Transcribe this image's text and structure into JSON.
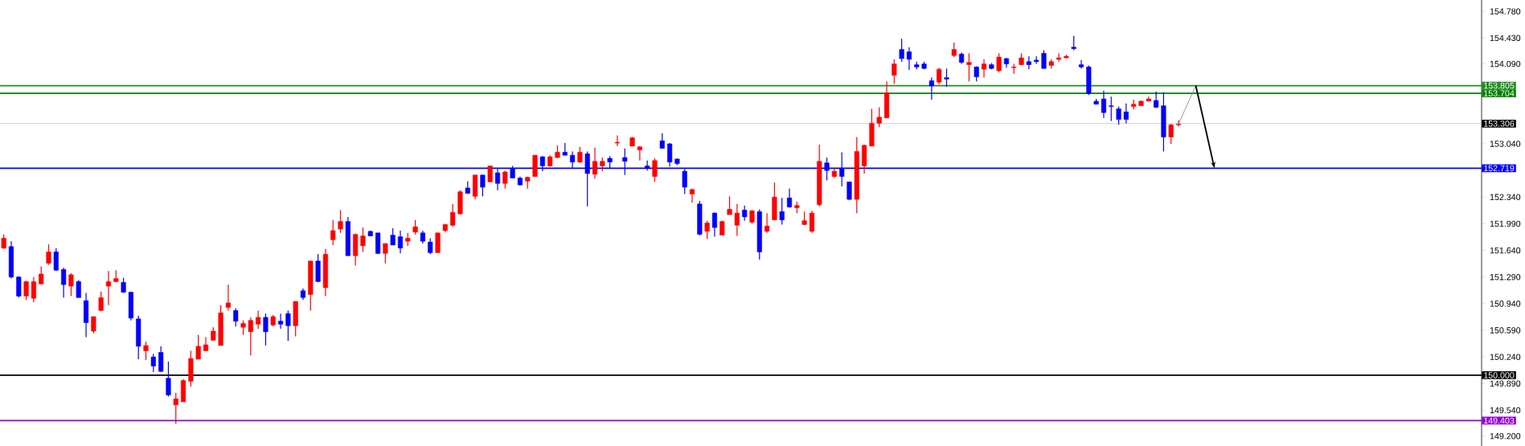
{
  "chart_data": {
    "type": "candlestick",
    "categories": [
      null,
      null,
      null,
      null,
      null,
      null,
      null,
      null,
      null,
      null,
      null,
      null,
      null,
      null,
      null,
      null,
      null,
      null,
      null,
      null,
      null,
      null,
      null,
      null,
      null,
      null,
      null,
      null,
      null,
      null,
      null,
      null,
      null,
      null,
      null,
      null,
      null,
      null,
      null,
      null,
      null,
      null,
      null,
      null,
      null,
      null,
      null,
      null,
      null,
      null,
      null,
      null,
      null,
      null,
      null,
      null,
      null,
      null,
      null,
      null,
      null,
      null,
      null,
      null,
      null,
      null,
      null,
      null,
      null,
      null,
      null,
      null,
      null,
      null,
      null,
      null,
      null,
      null,
      null,
      null,
      null,
      null,
      null,
      null,
      null,
      null,
      null,
      null,
      null,
      null,
      null,
      null,
      null,
      null,
      null,
      null,
      null,
      null,
      null,
      null,
      null,
      null,
      null,
      null,
      null,
      null,
      null,
      null,
      null,
      null,
      null,
      null,
      null,
      null,
      null,
      null,
      null,
      null,
      null,
      null,
      null,
      null,
      null,
      null,
      null,
      null,
      null,
      null,
      null,
      null,
      null,
      null,
      null,
      null,
      null,
      null,
      null,
      null,
      null,
      null,
      null,
      null,
      null,
      null,
      null,
      null,
      null,
      null,
      null,
      null,
      null,
      null,
      null,
      null,
      null,
      null,
      null,
      null,
      null,
      null,
      null,
      null,
      null,
      null,
      null,
      null,
      null,
      null,
      null,
      null,
      null,
      null,
      null,
      null,
      null,
      null,
      null,
      null,
      null,
      null,
      null,
      null,
      null,
      null,
      null,
      null,
      null,
      null,
      null,
      null,
      null,
      null,
      null,
      null,
      null,
      null,
      null,
      null
    ],
    "ohlc": [
      [
        151.67,
        151.85,
        151.66,
        151.8
      ],
      [
        151.69,
        151.76,
        151.27,
        151.29
      ],
      [
        151.29,
        151.3,
        151.02,
        151.04
      ],
      [
        151.04,
        151.24,
        150.99,
        151.23
      ],
      [
        151.01,
        151.29,
        150.96,
        151.23
      ],
      [
        151.2,
        151.43,
        151.19,
        151.33
      ],
      [
        151.47,
        151.72,
        151.45,
        151.62
      ],
      [
        151.62,
        151.67,
        151.37,
        151.38
      ],
      [
        151.39,
        151.41,
        151.02,
        151.19
      ],
      [
        151.17,
        151.34,
        151.04,
        151.32
      ],
      [
        151.23,
        151.25,
        151.02,
        151.02
      ],
      [
        150.98,
        151.08,
        150.5,
        150.69
      ],
      [
        150.58,
        150.77,
        150.55,
        150.77
      ],
      [
        150.85,
        151.1,
        150.84,
        151.02
      ],
      [
        151.17,
        151.37,
        150.92,
        151.23
      ],
      [
        151.23,
        151.38,
        151.22,
        151.27
      ],
      [
        151.22,
        151.28,
        151.08,
        151.09
      ],
      [
        151.09,
        151.1,
        150.72,
        150.75
      ],
      [
        150.74,
        150.78,
        150.21,
        150.38
      ],
      [
        150.32,
        150.44,
        150.2,
        150.39
      ],
      [
        150.24,
        150.28,
        150.04,
        150.12
      ],
      [
        150.3,
        150.38,
        150.04,
        150.05
      ],
      [
        149.96,
        150.18,
        149.72,
        149.74
      ],
      [
        149.61,
        149.77,
        149.36,
        149.69
      ],
      [
        149.65,
        149.95,
        149.65,
        149.93
      ],
      [
        149.92,
        150.32,
        149.85,
        150.22
      ],
      [
        150.21,
        150.53,
        150.21,
        150.38
      ],
      [
        150.32,
        150.5,
        150.32,
        150.4
      ],
      [
        150.46,
        150.63,
        150.45,
        150.58
      ],
      [
        150.39,
        150.92,
        150.39,
        150.82
      ],
      [
        150.89,
        151.19,
        150.85,
        150.95
      ],
      [
        150.85,
        150.88,
        150.64,
        150.71
      ],
      [
        150.63,
        150.72,
        150.53,
        150.68
      ],
      [
        150.57,
        150.76,
        150.26,
        150.72
      ],
      [
        150.67,
        150.85,
        150.61,
        150.76
      ],
      [
        150.76,
        150.81,
        150.39,
        150.57
      ],
      [
        150.66,
        150.79,
        150.64,
        150.77
      ],
      [
        150.71,
        150.81,
        150.61,
        150.67
      ],
      [
        150.81,
        150.85,
        150.45,
        150.65
      ],
      [
        150.65,
        150.97,
        150.51,
        150.97
      ],
      [
        151.11,
        151.14,
        150.99,
        151.02
      ],
      [
        151.06,
        151.5,
        150.85,
        151.5
      ],
      [
        151.5,
        151.59,
        151.22,
        151.23
      ],
      [
        151.15,
        151.66,
        151.04,
        151.59
      ],
      [
        151.78,
        152.04,
        151.71,
        151.9
      ],
      [
        151.92,
        152.17,
        151.87,
        152.02
      ],
      [
        152.02,
        152.08,
        151.57,
        151.57
      ],
      [
        151.57,
        151.86,
        151.44,
        151.85
      ],
      [
        151.7,
        151.94,
        151.62,
        151.83
      ],
      [
        151.89,
        151.9,
        151.83,
        151.83
      ],
      [
        151.87,
        151.87,
        151.59,
        151.6
      ],
      [
        151.6,
        151.73,
        151.47,
        151.73
      ],
      [
        151.84,
        151.93,
        151.71,
        151.71
      ],
      [
        151.82,
        151.9,
        151.6,
        151.67
      ],
      [
        151.76,
        151.87,
        151.7,
        151.8
      ],
      [
        151.88,
        152.04,
        151.85,
        151.95
      ],
      [
        151.87,
        151.9,
        151.73,
        151.76
      ],
      [
        151.75,
        151.8,
        151.59,
        151.61
      ],
      [
        151.61,
        151.87,
        151.61,
        151.87
      ],
      [
        151.9,
        151.99,
        151.88,
        151.98
      ],
      [
        151.97,
        152.25,
        151.95,
        152.14
      ],
      [
        152.12,
        152.43,
        152.11,
        152.41
      ],
      [
        152.46,
        152.55,
        152.38,
        152.39
      ],
      [
        152.35,
        152.63,
        152.31,
        152.63
      ],
      [
        152.63,
        152.63,
        152.35,
        152.47
      ],
      [
        152.54,
        152.75,
        152.54,
        152.75
      ],
      [
        152.66,
        152.71,
        152.43,
        152.52
      ],
      [
        152.52,
        152.69,
        152.45,
        152.67
      ],
      [
        152.71,
        152.75,
        152.59,
        152.59
      ],
      [
        152.59,
        152.61,
        152.49,
        152.5
      ],
      [
        152.55,
        152.61,
        152.45,
        152.6
      ],
      [
        152.61,
        152.89,
        152.61,
        152.89
      ],
      [
        152.87,
        152.88,
        152.68,
        152.75
      ],
      [
        152.75,
        152.89,
        152.74,
        152.87
      ],
      [
        152.86,
        153.02,
        152.85,
        152.93
      ],
      [
        152.93,
        153.05,
        152.89,
        152.89
      ],
      [
        152.89,
        152.94,
        152.72,
        152.8
      ],
      [
        152.8,
        153.0,
        152.79,
        152.93
      ],
      [
        152.91,
        152.94,
        152.22,
        152.65
      ],
      [
        152.64,
        152.99,
        152.58,
        152.81
      ],
      [
        152.75,
        152.86,
        152.68,
        152.81
      ],
      [
        152.85,
        152.88,
        152.72,
        152.8
      ],
      [
        153.05,
        153.15,
        153.01,
        153.06
      ],
      [
        152.86,
        152.98,
        152.63,
        152.81
      ],
      [
        153.01,
        153.13,
        153.01,
        153.12
      ],
      [
        152.96,
        153.01,
        152.82,
        153.0
      ],
      [
        152.75,
        152.82,
        152.69,
        152.72
      ],
      [
        152.61,
        152.85,
        152.54,
        152.82
      ],
      [
        153.08,
        153.18,
        152.98,
        152.98
      ],
      [
        153.04,
        153.05,
        152.74,
        152.8
      ],
      [
        152.84,
        152.85,
        152.76,
        152.78
      ],
      [
        152.68,
        152.71,
        152.38,
        152.47
      ],
      [
        152.38,
        152.45,
        152.27,
        152.44
      ],
      [
        152.25,
        152.29,
        151.84,
        151.85
      ],
      [
        151.89,
        152.03,
        151.79,
        152.0
      ],
      [
        152.13,
        152.14,
        151.82,
        151.94
      ],
      [
        151.84,
        152.03,
        151.84,
        152.02
      ],
      [
        152.11,
        152.35,
        152.11,
        152.18
      ],
      [
        151.97,
        152.25,
        151.83,
        152.13
      ],
      [
        152.17,
        152.23,
        152.03,
        152.08
      ],
      [
        152.01,
        152.17,
        151.99,
        152.16
      ],
      [
        152.15,
        152.18,
        151.52,
        151.62
      ],
      [
        151.89,
        152.13,
        151.87,
        151.96
      ],
      [
        152.04,
        152.53,
        152.04,
        152.34
      ],
      [
        152.15,
        152.33,
        151.98,
        152.04
      ],
      [
        152.33,
        152.45,
        152.2,
        152.21
      ],
      [
        152.2,
        152.28,
        152.13,
        152.23
      ],
      [
        151.98,
        152.15,
        151.97,
        152.03
      ],
      [
        151.89,
        152.16,
        151.87,
        152.13
      ],
      [
        152.24,
        153.03,
        152.22,
        152.81
      ],
      [
        152.79,
        152.86,
        152.56,
        152.69
      ],
      [
        152.61,
        152.72,
        152.59,
        152.68
      ],
      [
        152.72,
        152.93,
        152.48,
        152.61
      ],
      [
        152.54,
        152.54,
        152.3,
        152.31
      ],
      [
        152.31,
        153.13,
        152.13,
        152.94
      ],
      [
        152.75,
        153.03,
        152.65,
        153.02
      ],
      [
        153.01,
        153.5,
        153.01,
        153.31
      ],
      [
        153.31,
        153.52,
        153.26,
        153.39
      ],
      [
        153.38,
        153.86,
        153.38,
        153.71
      ],
      [
        153.94,
        154.15,
        153.83,
        154.09
      ],
      [
        154.28,
        154.42,
        154.12,
        154.16
      ],
      [
        154.25,
        154.31,
        154.01,
        154.15
      ],
      [
        154.08,
        154.12,
        154.02,
        154.05
      ],
      [
        154.09,
        154.12,
        154.02,
        154.03
      ],
      [
        153.87,
        153.91,
        153.62,
        153.8
      ],
      [
        153.85,
        154.04,
        153.82,
        154.02
      ],
      [
        153.91,
        154.03,
        153.79,
        153.89
      ],
      [
        154.2,
        154.37,
        154.18,
        154.28
      ],
      [
        154.22,
        154.24,
        154.09,
        154.11
      ],
      [
        154.08,
        154.23,
        153.86,
        154.11
      ],
      [
        154.05,
        154.06,
        153.86,
        153.92
      ],
      [
        154.02,
        154.15,
        153.91,
        154.09
      ],
      [
        154.08,
        154.1,
        154.02,
        154.03
      ],
      [
        154.0,
        154.23,
        153.98,
        154.18
      ],
      [
        154.16,
        154.17,
        154.04,
        154.09
      ],
      [
        154.04,
        154.09,
        153.96,
        154.05
      ],
      [
        154.08,
        154.23,
        154.07,
        154.17
      ],
      [
        154.12,
        154.19,
        154.02,
        154.08
      ],
      [
        154.14,
        154.19,
        154.09,
        154.12
      ],
      [
        154.23,
        154.27,
        154.03,
        154.03
      ],
      [
        154.07,
        154.15,
        154.03,
        154.12
      ],
      [
        154.15,
        154.23,
        154.12,
        154.17
      ],
      [
        154.17,
        154.21,
        154.16,
        154.19
      ],
      [
        154.31,
        154.46,
        154.27,
        154.29
      ],
      [
        154.08,
        154.14,
        154.03,
        154.05
      ],
      [
        154.05,
        154.07,
        153.68,
        153.7
      ],
      [
        153.6,
        153.63,
        153.56,
        153.56
      ],
      [
        153.63,
        153.74,
        153.38,
        153.45
      ],
      [
        153.54,
        153.66,
        153.34,
        153.53
      ],
      [
        153.5,
        153.53,
        153.29,
        153.36
      ],
      [
        153.46,
        153.57,
        153.31,
        153.36
      ],
      [
        153.53,
        153.62,
        153.49,
        153.56
      ],
      [
        153.54,
        153.61,
        153.54,
        153.6
      ],
      [
        153.6,
        153.66,
        153.6,
        153.63
      ],
      [
        153.61,
        153.73,
        153.51,
        153.52
      ],
      [
        153.54,
        153.72,
        152.94,
        153.13
      ],
      [
        153.13,
        153.3,
        153.04,
        153.29
      ],
      [
        153.29,
        153.35,
        153.27,
        153.3
      ],
      null,
      null,
      null,
      null,
      null,
      null,
      null,
      null,
      null,
      null,
      null,
      null,
      null,
      null,
      null,
      null,
      null,
      null,
      null,
      null,
      null,
      null,
      null,
      null,
      null,
      null,
      null,
      null,
      null,
      null,
      null,
      null,
      null,
      null,
      null,
      null,
      null,
      null,
      null,
      null
    ],
    "colors": [
      "#ff0000",
      "#0000ff",
      "#0000ff",
      "#ff0000",
      "#ff0000",
      "#ff0000",
      "#ff0000",
      "#0000ff",
      "#0000ff",
      "#ff0000",
      "#0000ff",
      "#0000ff",
      "#ff0000",
      "#ff0000",
      "#ff0000",
      "#ff0000",
      "#0000ff",
      "#0000ff",
      "#0000ff",
      "#ff0000",
      "#0000ff",
      "#0000ff",
      "#0000ff",
      "#ff0000",
      "#ff0000",
      "#ff0000",
      "#ff0000",
      "#ff0000",
      "#ff0000",
      "#ff0000",
      "#ff0000",
      "#0000ff",
      "#ff0000",
      "#ff0000",
      "#ff0000",
      "#0000ff",
      "#ff0000",
      "#0000ff",
      "#0000ff",
      "#ff0000",
      "#0000ff",
      "#ff0000",
      "#0000ff",
      "#ff0000",
      "#ff0000",
      "#ff0000",
      "#0000ff",
      "#ff0000",
      "#ff0000",
      "#0000ff",
      "#0000ff",
      "#ff0000",
      "#0000ff",
      "#0000ff",
      "#ff0000",
      "#ff0000",
      "#0000ff",
      "#0000ff",
      "#ff0000",
      "#ff0000",
      "#ff0000",
      "#ff0000",
      "#0000ff",
      "#ff0000",
      "#0000ff",
      "#ff0000",
      "#0000ff",
      "#ff0000",
      "#0000ff",
      "#0000ff",
      "#ff0000",
      "#ff0000",
      "#0000ff",
      "#ff0000",
      "#ff0000",
      "#0000ff",
      "#0000ff",
      "#ff0000",
      "#0000ff",
      "#ff0000",
      "#ff0000",
      "#0000ff",
      "#ff0000",
      "#0000ff",
      "#ff0000",
      "#ff0000",
      "#0000ff",
      "#ff0000",
      "#0000ff",
      "#0000ff",
      "#0000ff",
      "#0000ff",
      "#ff0000",
      "#0000ff",
      "#ff0000",
      "#0000ff",
      "#ff0000",
      "#ff0000",
      "#ff0000",
      "#0000ff",
      "#ff0000",
      "#0000ff",
      "#ff0000",
      "#ff0000",
      "#0000ff",
      "#0000ff",
      "#ff0000",
      "#ff0000",
      "#ff0000",
      "#ff0000",
      "#0000ff",
      "#ff0000",
      "#0000ff",
      "#0000ff",
      "#ff0000",
      "#ff0000",
      "#ff0000",
      "#ff0000",
      "#ff0000",
      "#ff0000",
      "#0000ff",
      "#0000ff",
      "#0000ff",
      "#0000ff",
      "#0000ff",
      "#ff0000",
      "#0000ff",
      "#ff0000",
      "#0000ff",
      "#ff0000",
      "#0000ff",
      "#ff0000",
      "#0000ff",
      "#ff0000",
      "#0000ff",
      "#ff0000",
      "#ff0000",
      "#0000ff",
      "#0000ff",
      "#0000ff",
      "#ff0000",
      "#ff0000",
      "#ff0000",
      "#0000ff",
      "#0000ff",
      "#0000ff",
      "#0000ff",
      "#0000ff",
      "#0000ff",
      "#0000ff",
      "#0000ff",
      "#ff0000",
      "#ff0000",
      "#ff0000",
      "#0000ff",
      "#0000ff",
      "#ff0000",
      "#ff0000",
      null,
      null,
      null,
      null,
      null,
      null,
      null,
      null,
      null,
      null,
      null,
      null,
      null,
      null,
      null,
      null,
      null,
      null,
      null,
      null,
      null,
      null,
      null,
      null,
      null,
      null,
      null,
      null,
      null,
      null,
      null,
      null,
      null,
      null,
      null,
      null,
      null,
      null,
      null,
      null
    ],
    "ylim": [
      149.07,
      154.93
    ],
    "yticks": [
      {
        "value": 149.2,
        "label": "149.200"
      },
      {
        "value": 149.54,
        "label": "149.540"
      },
      {
        "value": 149.89,
        "label": "149.890"
      },
      {
        "value": 150.24,
        "label": "150.240"
      },
      {
        "value": 150.59,
        "label": "150.590"
      },
      {
        "value": 150.94,
        "label": "150.940"
      },
      {
        "value": 151.29,
        "label": "151.290"
      },
      {
        "value": 151.64,
        "label": "151.640"
      },
      {
        "value": 151.99,
        "label": "151.990"
      },
      {
        "value": 152.34,
        "label": "152.340"
      },
      {
        "value": 153.04,
        "label": "153.040"
      },
      {
        "value": 154.09,
        "label": "154.090"
      },
      {
        "value": 154.43,
        "label": "154.430"
      },
      {
        "value": 154.78,
        "label": "154.780"
      }
    ],
    "tick_labels": "y",
    "ref_lines": [
      {
        "axis": "y",
        "value": 153.805,
        "label": "153.805",
        "color": "#228b22"
      },
      {
        "axis": "y",
        "value": 153.704,
        "label": "153.704",
        "color": "#008000"
      },
      {
        "axis": "y",
        "value": 153.306,
        "label": "153.306",
        "color": "#c0c0c0"
      },
      {
        "axis": "y",
        "value": 152.719,
        "label": "152.719",
        "color": "#0000ff"
      },
      {
        "axis": "y",
        "value": 150.0,
        "label": "150.000",
        "color": "#000000"
      },
      {
        "axis": "y",
        "value": 149.403,
        "label": "149.403",
        "color": "#9400d3"
      }
    ]
  }
}
